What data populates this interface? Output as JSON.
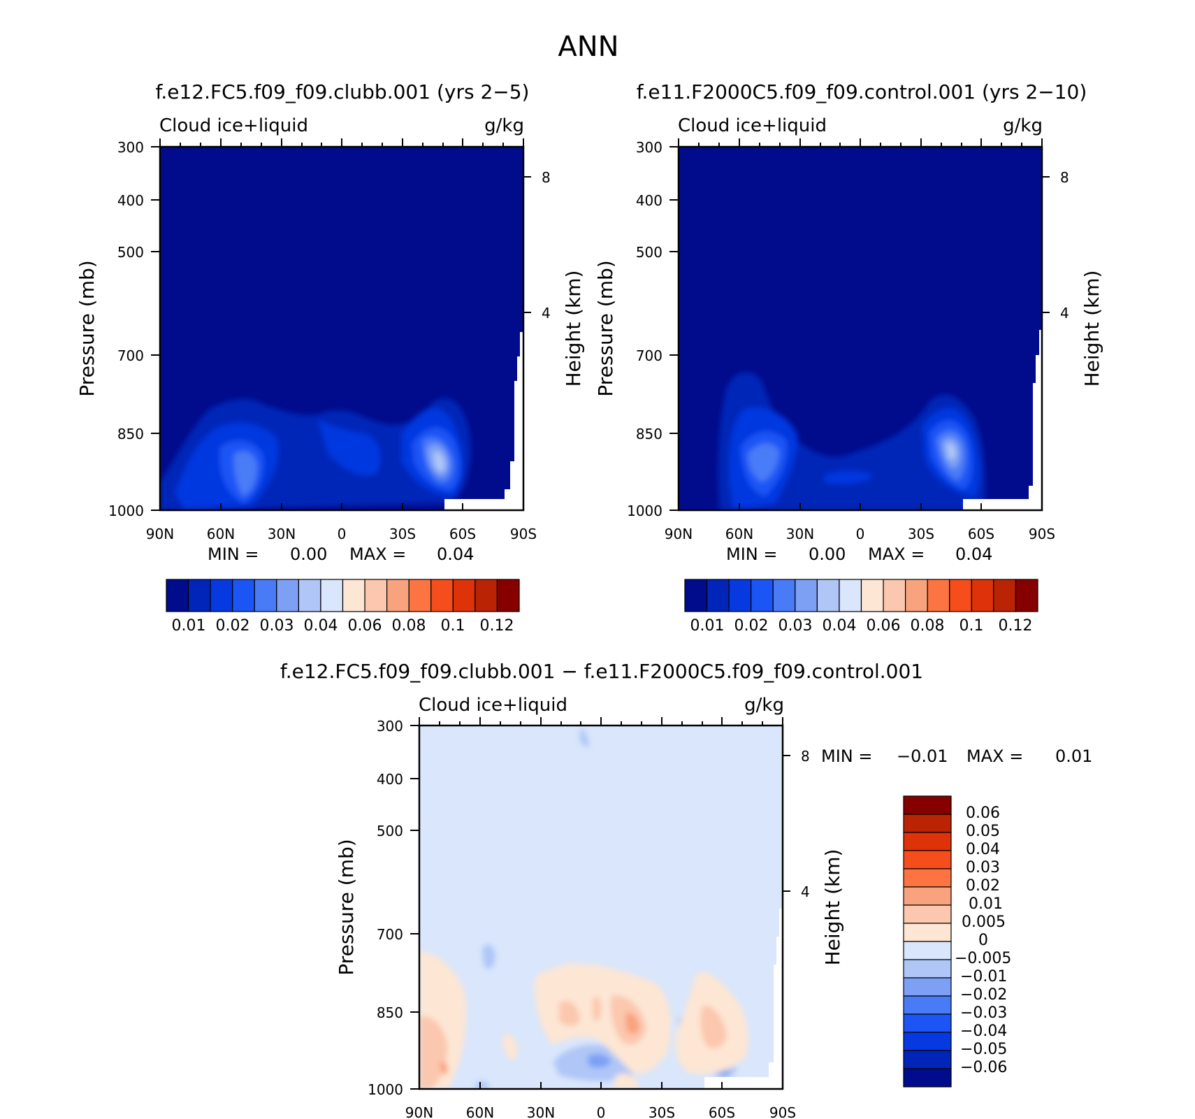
{
  "page_title": "ANN",
  "colors": {
    "abs_scale": [
      "#000c8c",
      "#0025b8",
      "#0639e0",
      "#1c55f5",
      "#4a7bf7",
      "#7da0f5",
      "#afc6f7",
      "#d9e6fb",
      "#fde6d4",
      "#fbc7ae",
      "#f9a27e",
      "#fb7442",
      "#f54d1c",
      "#de3208",
      "#ba2404",
      "#870000"
    ],
    "diff_scale": [
      "#000c8c",
      "#0025b8",
      "#0639e0",
      "#1c55f5",
      "#4a7bf7",
      "#7da0f5",
      "#afc6f7",
      "#d9e6fb",
      "#fde6d4",
      "#fbc7ae",
      "#f9a27e",
      "#fb7442",
      "#f54d1c",
      "#de3208",
      "#ba2404",
      "#870000"
    ],
    "panel_background_abs": "#000c8c",
    "panel_background_diff": "#d9e6fb"
  },
  "chart_data": [
    {
      "type": "heatmap",
      "title": "f.e12.FC5.f09_f09.clubb.001 (yrs 2-5)",
      "variable": "Cloud ice+liquid",
      "units": "g/kg",
      "ylabel": "Pressure (mb)",
      "ylabel_right": "Height (km)",
      "x_ticks": [
        "90N",
        "60N",
        "30N",
        "0",
        "30S",
        "60S",
        "90S"
      ],
      "y_ticks": [
        "300",
        "400",
        "500",
        "700",
        "850",
        "1000"
      ],
      "y_ticks_right": [
        "8",
        "4"
      ],
      "ylim": [
        1000,
        300
      ],
      "min_text": "MIN =",
      "min_value": "0.00",
      "max_text": "MAX =",
      "max_value": "0.04",
      "colorbar_labels": [
        "0.01",
        "0.02",
        "0.03",
        "0.04",
        "0.06",
        "0.08",
        "0.1",
        "0.12"
      ],
      "features": [
        {
          "lat": 40,
          "p": 870,
          "level": 4
        },
        {
          "lat": -48,
          "p": 870,
          "level": 6
        },
        {
          "lat": 2,
          "p": 840,
          "level": 2
        }
      ]
    },
    {
      "type": "heatmap",
      "title": "f.e11.F2000C5.f09_f09.control.001 (yrs 2-10)",
      "variable": "Cloud ice+liquid",
      "units": "g/kg",
      "ylabel": "Pressure (mb)",
      "ylabel_right": "Height (km)",
      "x_ticks": [
        "90N",
        "60N",
        "30N",
        "0",
        "30S",
        "60S",
        "90S"
      ],
      "y_ticks": [
        "300",
        "400",
        "500",
        "700",
        "850",
        "1000"
      ],
      "y_ticks_right": [
        "8",
        "4"
      ],
      "ylim": [
        1000,
        300
      ],
      "min_text": "MIN =",
      "min_value": "0.00",
      "max_text": "MAX =",
      "max_value": "0.04",
      "colorbar_labels": [
        "0.01",
        "0.02",
        "0.03",
        "0.04",
        "0.06",
        "0.08",
        "0.1",
        "0.12"
      ],
      "features": [
        {
          "lat": 55,
          "p": 870,
          "level": 4
        },
        {
          "lat": -44,
          "p": 860,
          "level": 6
        }
      ]
    },
    {
      "type": "heatmap",
      "title": "f.e12.FC5.f09_f09.clubb.001 - f.e11.F2000C5.f09_f09.control.001",
      "variable": "Cloud ice+liquid",
      "units": "g/kg",
      "ylabel": "Pressure (mb)",
      "ylabel_right": "Height (km)",
      "x_ticks": [
        "90N",
        "60N",
        "30N",
        "0",
        "30S",
        "60S",
        "90S"
      ],
      "y_ticks": [
        "300",
        "400",
        "500",
        "700",
        "850",
        "1000"
      ],
      "y_ticks_right": [
        "8",
        "4"
      ],
      "ylim": [
        1000,
        300
      ],
      "min_text": "MIN =",
      "min_value": "-0.01",
      "max_text": "MAX =",
      "max_value": "0.01",
      "colorbar_labels": [
        "0.06",
        "0.05",
        "0.04",
        "0.03",
        "0.02",
        "0.01",
        "0.005",
        "0",
        "-0.005",
        "-0.01",
        "-0.02",
        "-0.03",
        "-0.04",
        "-0.05",
        "-0.06"
      ]
    }
  ]
}
